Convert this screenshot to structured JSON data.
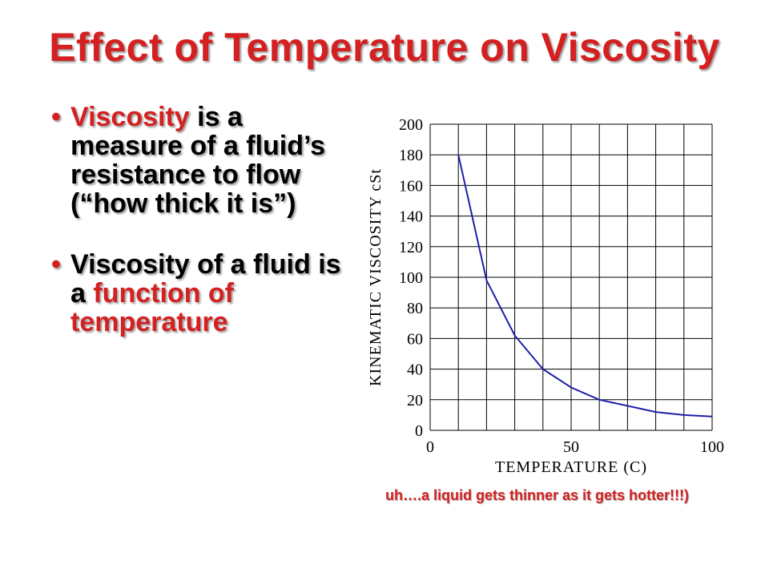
{
  "slide": {
    "title": "Effect of Temperature on Viscosity",
    "caption": "uh….a liquid gets thinner as it gets hotter!!!)",
    "bullet_glyph": "•",
    "bullets": [
      {
        "highlight": "Viscosity",
        "text": " is a measure of a fluid’s resistance to flow (“how thick it is”)"
      },
      {
        "text": "Viscosity of a fluid is a ",
        "highlight": "function of temperature"
      }
    ]
  },
  "colors": {
    "accent": "#d42020",
    "curve": "#1f1fa8",
    "grid": "#000000"
  },
  "chart_data": {
    "type": "line",
    "xlabel": "TEMPERATURE (C)",
    "ylabel": "KINEMATIC VISCOSITY cSt",
    "xlim": [
      0,
      100
    ],
    "ylim": [
      0,
      200
    ],
    "x_ticks": [
      0,
      50,
      100
    ],
    "y_ticks": [
      0,
      20,
      40,
      60,
      80,
      100,
      120,
      140,
      160,
      180,
      200
    ],
    "grid": true,
    "series": [
      {
        "x": [
          10,
          20,
          30,
          40,
          50,
          60,
          70,
          80,
          90,
          100
        ],
        "values": [
          180,
          98,
          62,
          40,
          28,
          20,
          16,
          12,
          10,
          9
        ]
      }
    ]
  }
}
